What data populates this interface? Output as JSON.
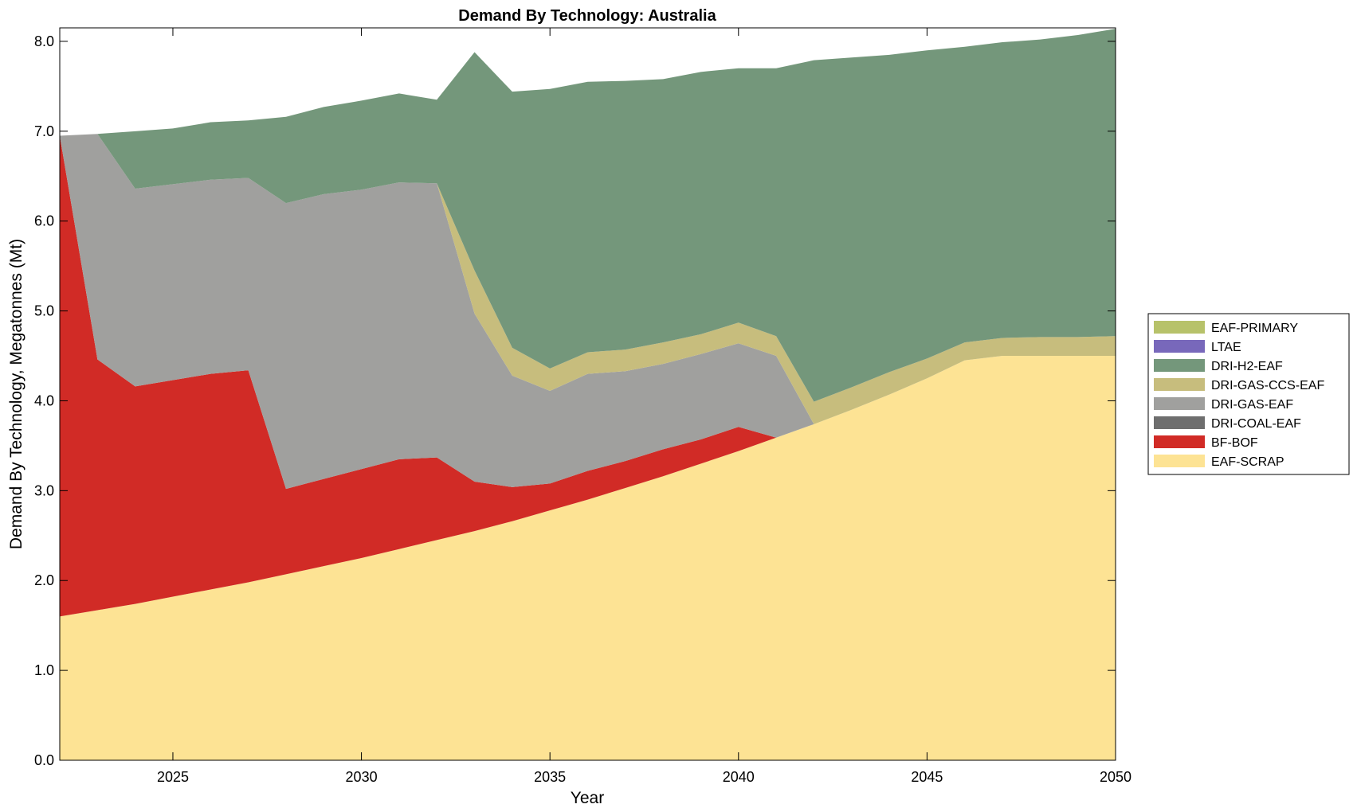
{
  "chart_data": {
    "type": "area",
    "stacked": true,
    "title": "Demand By Technology: Australia",
    "xlabel": "Year",
    "ylabel": "Demand By Technology, Megatonnes (Mt)",
    "xlim": [
      2022,
      2050
    ],
    "ylim": [
      0,
      8.15
    ],
    "xticks": [
      2025,
      2030,
      2035,
      2040,
      2045,
      2050
    ],
    "yticks": [
      "0.0",
      "1.0",
      "2.0",
      "3.0",
      "4.0",
      "5.0",
      "6.0",
      "7.0",
      "8.0"
    ],
    "legend_position": "right",
    "x": [
      2022,
      2023,
      2024,
      2025,
      2026,
      2027,
      2028,
      2029,
      2030,
      2031,
      2032,
      2033,
      2034,
      2035,
      2036,
      2037,
      2038,
      2039,
      2040,
      2041,
      2042,
      2043,
      2044,
      2045,
      2046,
      2047,
      2048,
      2049,
      2050
    ],
    "series": [
      {
        "name": "EAF-SCRAP",
        "color": "#fde394",
        "values": [
          1.6,
          1.67,
          1.74,
          1.82,
          1.9,
          1.98,
          2.07,
          2.16,
          2.25,
          2.35,
          2.45,
          2.55,
          2.66,
          2.78,
          2.9,
          3.03,
          3.16,
          3.3,
          3.44,
          3.59,
          3.74,
          3.9,
          4.07,
          4.25,
          4.45,
          4.5,
          4.5,
          4.5,
          4.5
        ]
      },
      {
        "name": "BF-BOF",
        "color": "#d12b26",
        "values": [
          5.35,
          2.79,
          2.42,
          2.41,
          2.4,
          2.36,
          0.95,
          0.97,
          0.99,
          1.0,
          0.92,
          0.55,
          0.38,
          0.3,
          0.32,
          0.3,
          0.3,
          0.27,
          0.27,
          0.0,
          0.0,
          0.0,
          0.0,
          0.0,
          0.0,
          0.0,
          0.0,
          0.0,
          0.0
        ]
      },
      {
        "name": "DRI-COAL-EAF",
        "color": "#6e6e6e",
        "values": [
          0,
          0,
          0,
          0,
          0,
          0,
          0,
          0,
          0,
          0,
          0,
          0,
          0,
          0,
          0,
          0,
          0,
          0,
          0,
          0,
          0,
          0,
          0,
          0,
          0,
          0,
          0,
          0,
          0
        ]
      },
      {
        "name": "DRI-GAS-EAF",
        "color": "#a0a09e",
        "values": [
          0.0,
          2.51,
          2.2,
          2.18,
          2.16,
          2.14,
          3.18,
          3.17,
          3.11,
          3.08,
          3.05,
          1.87,
          1.24,
          1.03,
          1.08,
          1.0,
          0.95,
          0.95,
          0.93,
          0.91,
          0.0,
          0.0,
          0.0,
          0.0,
          0.0,
          0.0,
          0.0,
          0.0,
          0.0
        ]
      },
      {
        "name": "DRI-GAS-CCS-EAF",
        "color": "#c7bd7d",
        "values": [
          0.0,
          0.0,
          0.0,
          0.0,
          0.0,
          0.0,
          0.0,
          0.0,
          0.0,
          0.0,
          0.0,
          0.48,
          0.31,
          0.25,
          0.24,
          0.24,
          0.24,
          0.22,
          0.23,
          0.22,
          0.25,
          0.25,
          0.25,
          0.22,
          0.2,
          0.2,
          0.21,
          0.21,
          0.22
        ]
      },
      {
        "name": "DRI-H2-EAF",
        "color": "#74977b",
        "values": [
          0.0,
          0.0,
          0.64,
          0.62,
          0.64,
          0.64,
          0.96,
          0.97,
          0.99,
          0.99,
          0.93,
          2.43,
          2.85,
          3.11,
          3.01,
          2.99,
          2.93,
          2.92,
          2.83,
          2.98,
          3.8,
          3.67,
          3.53,
          3.43,
          3.29,
          3.29,
          3.31,
          3.36,
          3.42
        ]
      },
      {
        "name": "LTAE",
        "color": "#7868bb",
        "values": [
          0,
          0,
          0,
          0,
          0,
          0,
          0,
          0,
          0,
          0,
          0,
          0,
          0,
          0,
          0,
          0,
          0,
          0,
          0,
          0,
          0,
          0,
          0,
          0,
          0,
          0,
          0,
          0,
          0
        ]
      },
      {
        "name": "EAF-PRIMARY",
        "color": "#b7c26a",
        "values": [
          0,
          0,
          0,
          0,
          0,
          0,
          0,
          0,
          0,
          0,
          0,
          0,
          0,
          0,
          0,
          0,
          0,
          0,
          0,
          0,
          0,
          0,
          0,
          0,
          0,
          0,
          0,
          0,
          0
        ]
      }
    ],
    "legend_order": [
      "EAF-PRIMARY",
      "LTAE",
      "DRI-H2-EAF",
      "DRI-GAS-CCS-EAF",
      "DRI-GAS-EAF",
      "DRI-COAL-EAF",
      "BF-BOF",
      "EAF-SCRAP"
    ]
  }
}
